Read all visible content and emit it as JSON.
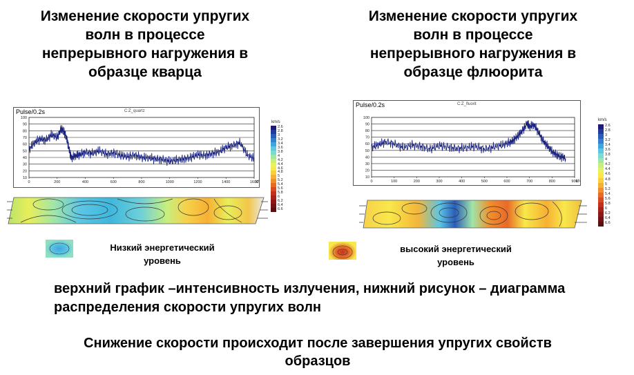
{
  "left": {
    "title": "Изменение скорости упругих\nволн в процессе\nнепрерывного нагружения в\nобразце кварца",
    "plot_label": "Pulse/0.2s",
    "plot_caption": "C:Z_quartz"
  },
  "right": {
    "title": "Изменение скорости упругих\nволн в процессе\nнепрерывного нагружения в\nобразце флюорита",
    "plot_label": "Pulse/0.2s",
    "plot_caption": "C:Z_fluorit"
  },
  "colorbar": {
    "unit": "km/s",
    "ticks": [
      "2.6",
      "2.8",
      "3",
      "3.2",
      "3.4",
      "3.6",
      "3.8",
      "4",
      "4.2",
      "4.4",
      "4.6",
      "4.8",
      "5",
      "5.2",
      "5.4",
      "5.6",
      "5.8",
      "6",
      "6.2",
      "6.4",
      "6.6"
    ],
    "colors": [
      "#1d1a78",
      "#243a9a",
      "#2a5cba",
      "#3380cf",
      "#3fa5df",
      "#5cc6e4",
      "#7ed9d0",
      "#9fe6a8",
      "#c6ef7e",
      "#e6f35e",
      "#f8e84a",
      "#fbcf3c",
      "#f7b033",
      "#f28e2c",
      "#e86a26",
      "#d84a22",
      "#c2311f",
      "#a8221c",
      "#8e1818",
      "#741313",
      "#5c0f0f"
    ]
  },
  "legend": {
    "low_label": "Низкий энергетический\nуровень",
    "high_label": "высокий энергетический\nуровень",
    "low_color": "#3fb7dd",
    "high_color": "#e0612a"
  },
  "note": "верхний график –интенсивность излучения, нижний рисунок – диаграмма распределения скорости упругих волн",
  "conclusion": "Снижение скорости происходит после завершения упругих свойств\nобразцов",
  "chart_data": [
    {
      "type": "line",
      "title": "",
      "xlabel": "kN",
      "ylabel": "Pulse/0.2s",
      "xlim": [
        0,
        1600
      ],
      "ylim": [
        10,
        100
      ],
      "x_ticks": [
        "0",
        "200",
        "400",
        "600",
        "800",
        "1000",
        "1200",
        "1400",
        "1600"
      ],
      "y_ticks": [
        "10",
        "20",
        "30",
        "40",
        "50",
        "60",
        "70",
        "80",
        "90",
        "100"
      ],
      "grid": true,
      "line_color": "#1a237e",
      "series": [
        {
          "x": [
            0,
            40,
            80,
            120,
            160,
            200,
            230,
            250,
            270,
            290,
            300,
            330,
            360,
            400,
            450,
            500,
            550,
            600,
            650,
            700,
            750,
            800,
            850,
            900,
            950,
            1000,
            1050,
            1100,
            1150,
            1200,
            1250,
            1300,
            1350,
            1400,
            1450,
            1500,
            1550,
            1600
          ],
          "y": [
            52,
            62,
            68,
            66,
            74,
            70,
            84,
            78,
            66,
            48,
            40,
            42,
            44,
            48,
            46,
            50,
            45,
            47,
            43,
            41,
            44,
            40,
            39,
            38,
            37,
            34,
            36,
            38,
            40,
            44,
            43,
            46,
            48,
            55,
            58,
            62,
            44,
            38
          ]
        }
      ]
    },
    {
      "type": "line",
      "title": "",
      "xlabel": "kN",
      "ylabel": "Pulse/0.2s",
      "xlim": [
        0,
        900
      ],
      "ylim": [
        10,
        100
      ],
      "x_ticks": [
        "0",
        "100",
        "200",
        "300",
        "400",
        "500",
        "600",
        "700",
        "800",
        "900"
      ],
      "y_ticks": [
        "10",
        "20",
        "30",
        "40",
        "50",
        "60",
        "70",
        "80",
        "90",
        "100"
      ],
      "grid": true,
      "line_color": "#1a237e",
      "series": [
        {
          "x": [
            0,
            30,
            60,
            100,
            140,
            180,
            220,
            260,
            300,
            340,
            380,
            420,
            460,
            500,
            540,
            580,
            610,
            630,
            650,
            670,
            690,
            700,
            720,
            740,
            760,
            780,
            800,
            820,
            840,
            860
          ],
          "y": [
            55,
            58,
            63,
            60,
            54,
            58,
            56,
            52,
            57,
            55,
            53,
            54,
            56,
            52,
            55,
            58,
            62,
            66,
            72,
            80,
            92,
            86,
            88,
            78,
            65,
            56,
            48,
            44,
            40,
            38
          ]
        }
      ]
    }
  ]
}
